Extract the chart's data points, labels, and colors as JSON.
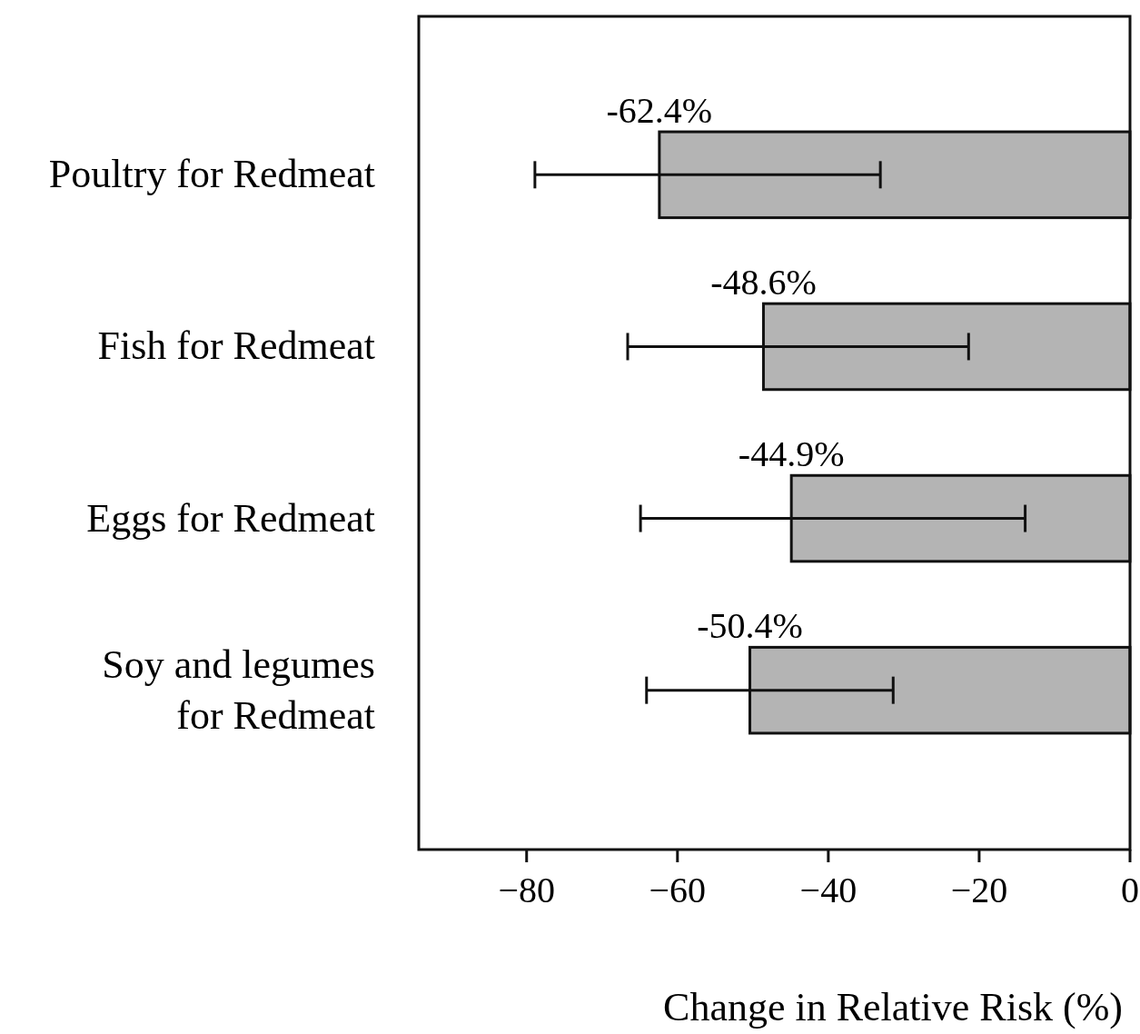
{
  "chart_data": {
    "type": "bar",
    "orientation": "horizontal",
    "xlabel": "Change in Relative Risk (%)",
    "categories": [
      "Poultry for Redmeat",
      "Fish for Redmeat",
      "Eggs for Redmeat",
      "Soy and legumes for Redmeat"
    ],
    "values": [
      -62.4,
      -48.6,
      -44.9,
      -50.4
    ],
    "value_labels": [
      "-62.4%",
      "-48.6%",
      "-44.9%",
      "-50.4%"
    ],
    "errors": [
      [
        -78.9,
        -33.1
      ],
      [
        -66.6,
        -21.4
      ],
      [
        -64.9,
        -13.9
      ],
      [
        -64.1,
        -31.4
      ]
    ],
    "color": "#b4b4b4",
    "xlim": [
      -94.3,
      0
    ],
    "xticks": [
      {
        "value": -80,
        "label": "−80"
      },
      {
        "value": -60,
        "label": "−60"
      },
      {
        "value": -40,
        "label": "−40"
      },
      {
        "value": -20,
        "label": "−20"
      },
      0
    ],
    "grid": false
  }
}
